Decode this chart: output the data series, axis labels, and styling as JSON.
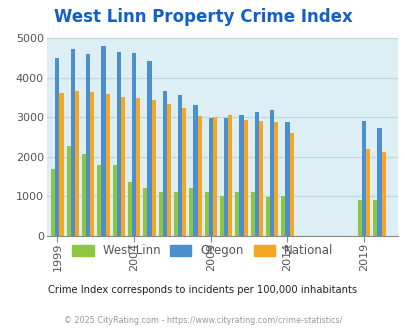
{
  "title": "West Linn Property Crime Index",
  "title_color": "#1060c8",
  "background_color": "#ddeef4",
  "plot_bg_color": "#ddeef4",
  "fig_bg_color": "#ffffff",
  "subtitle": "Crime Index corresponds to incidents per 100,000 inhabitants",
  "footer": "© 2025 CityRating.com - https://www.cityrating.com/crime-statistics/",
  "years": [
    1999,
    2000,
    2001,
    2002,
    2003,
    2004,
    2005,
    2006,
    2007,
    2008,
    2009,
    2010,
    2011,
    2012,
    2013,
    2014,
    2019,
    2020
  ],
  "west_linn": [
    1680,
    2280,
    2080,
    1780,
    1780,
    1350,
    1200,
    1100,
    1100,
    1200,
    1100,
    1020,
    1100,
    1100,
    980,
    1000,
    900,
    920
  ],
  "oregon": [
    4500,
    4730,
    4600,
    4800,
    4650,
    4620,
    4420,
    3650,
    3550,
    3300,
    2970,
    2990,
    3050,
    3120,
    3180,
    2880,
    2910,
    2720
  ],
  "national": [
    3600,
    3660,
    3630,
    3590,
    3520,
    3490,
    3440,
    3330,
    3230,
    3030,
    3000,
    3050,
    2920,
    2900,
    2870,
    2600,
    2190,
    2130
  ],
  "colors": {
    "west_linn": "#8dc63f",
    "oregon": "#4d8fcc",
    "national": "#f5a623"
  },
  "ylim": [
    0,
    5000
  ],
  "yticks": [
    0,
    1000,
    2000,
    3000,
    4000,
    5000
  ],
  "tick_years": [
    1999,
    2004,
    2009,
    2014,
    2019
  ],
  "bar_width": 0.27,
  "grid_color": "#b8d8e4",
  "tick_color": "#555555",
  "subtitle_color": "#222222",
  "footer_color": "#999999"
}
